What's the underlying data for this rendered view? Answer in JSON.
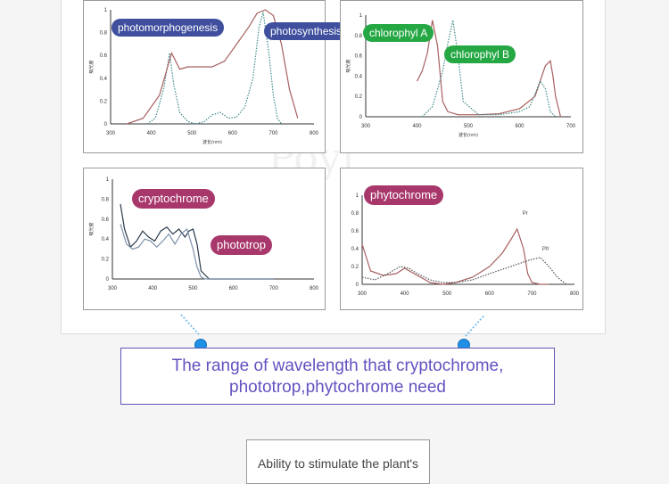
{
  "chart_data": [
    {
      "type": "line",
      "x_ticks": [
        "300",
        "400",
        "500",
        "600",
        "700",
        "800"
      ],
      "y_ticks": [
        "0",
        "0.2",
        "0.4",
        "0.6",
        "0.8",
        "1"
      ],
      "ylabel": "吸光度",
      "xlabel": "波长(nm)",
      "xlim": [
        300,
        800
      ],
      "ylim": [
        0,
        1
      ],
      "series": [
        {
          "name": "photomorphogenesis",
          "color": "#3f8a8a",
          "style": "dotted",
          "x": [
            390,
            410,
            430,
            445,
            455,
            470,
            490,
            510,
            530,
            550,
            570,
            590,
            610,
            630,
            650,
            665,
            675,
            690,
            700,
            710,
            720
          ],
          "y": [
            0,
            0.05,
            0.3,
            0.62,
            0.35,
            0.1,
            0.02,
            0,
            0.02,
            0.08,
            0.1,
            0.05,
            0.06,
            0.15,
            0.4,
            0.85,
            0.98,
            0.6,
            0.25,
            0.05,
            0
          ]
        },
        {
          "name": "photosynthesis",
          "color": "#a86060",
          "style": "solid",
          "x": [
            340,
            380,
            420,
            450,
            470,
            490,
            520,
            550,
            580,
            610,
            640,
            660,
            680,
            700,
            720,
            740,
            760
          ],
          "y": [
            0,
            0.05,
            0.25,
            0.62,
            0.48,
            0.5,
            0.5,
            0.5,
            0.55,
            0.7,
            0.85,
            0.97,
            1.0,
            0.95,
            0.7,
            0.3,
            0.05
          ]
        }
      ]
    },
    {
      "type": "line",
      "x_ticks": [
        "300",
        "400",
        "500",
        "600",
        "700"
      ],
      "y_ticks": [
        "0",
        "0.2",
        "0.4",
        "0.6",
        "0.8",
        "1"
      ],
      "ylabel": "吸光度",
      "xlabel": "波长(nm)",
      "xlim": [
        300,
        700
      ],
      "ylim": [
        0,
        1
      ],
      "series": [
        {
          "name": "chlorophyl A",
          "color": "#a86060",
          "style": "solid",
          "x": [
            400,
            410,
            420,
            430,
            440,
            450,
            460,
            480,
            520,
            560,
            600,
            630,
            650,
            660,
            665,
            670,
            680
          ],
          "y": [
            0.35,
            0.45,
            0.62,
            0.95,
            0.7,
            0.15,
            0.05,
            0.02,
            0.02,
            0.03,
            0.08,
            0.2,
            0.5,
            0.55,
            0.4,
            0.2,
            0
          ]
        },
        {
          "name": "chlorophyl B",
          "color": "#3f8a8a",
          "style": "dotted",
          "x": [
            410,
            430,
            450,
            460,
            470,
            480,
            490,
            520,
            560,
            600,
            620,
            640,
            650,
            660,
            670
          ],
          "y": [
            0,
            0.1,
            0.45,
            0.72,
            0.95,
            0.6,
            0.15,
            0.02,
            0.02,
            0.05,
            0.1,
            0.35,
            0.28,
            0.05,
            0
          ]
        }
      ]
    },
    {
      "type": "line",
      "x_ticks": [
        "300",
        "400",
        "500",
        "600",
        "700",
        "800"
      ],
      "y_ticks": [
        "0",
        "0.2",
        "0.4",
        "0.6",
        "0.8",
        "1"
      ],
      "ylabel": "吸光度",
      "xlabel": "",
      "xlim": [
        300,
        800
      ],
      "ylim": [
        0,
        1
      ],
      "series": [
        {
          "name": "cryptochrome",
          "color": "#2a3a4a",
          "style": "solid",
          "x": [
            320,
            330,
            345,
            360,
            375,
            390,
            405,
            420,
            435,
            450,
            465,
            480,
            490,
            500,
            510,
            520,
            540,
            600,
            700
          ],
          "y": [
            0.75,
            0.5,
            0.32,
            0.38,
            0.48,
            0.42,
            0.38,
            0.48,
            0.52,
            0.45,
            0.5,
            0.42,
            0.48,
            0.5,
            0.35,
            0.08,
            0,
            0,
            0
          ]
        },
        {
          "name": "phototrop",
          "color": "#7b8fa8",
          "style": "solid",
          "x": [
            320,
            335,
            350,
            365,
            380,
            395,
            410,
            425,
            440,
            455,
            470,
            485,
            500,
            510,
            520,
            530,
            550,
            600,
            700
          ],
          "y": [
            0.55,
            0.35,
            0.3,
            0.32,
            0.4,
            0.38,
            0.32,
            0.38,
            0.45,
            0.35,
            0.45,
            0.5,
            0.3,
            0.12,
            0.02,
            0,
            0,
            0,
            0
          ]
        }
      ]
    },
    {
      "type": "line",
      "x_ticks": [
        "300",
        "400",
        "500",
        "600",
        "700",
        "800"
      ],
      "y_ticks": [
        "0",
        "0.2",
        "0.4",
        "0.6",
        "0.8",
        "1"
      ],
      "ylabel": "",
      "xlabel": "",
      "xlim": [
        300,
        800
      ],
      "ylim": [
        0,
        1
      ],
      "series": [
        {
          "name": "Pr",
          "color": "#a86060",
          "style": "solid",
          "x": [
            300,
            320,
            350,
            380,
            400,
            430,
            460,
            490,
            520,
            560,
            600,
            630,
            650,
            665,
            680,
            690,
            700,
            720,
            740
          ],
          "y": [
            0.45,
            0.15,
            0.1,
            0.12,
            0.18,
            0.1,
            0.02,
            0,
            0.02,
            0.08,
            0.2,
            0.35,
            0.5,
            0.62,
            0.4,
            0.12,
            0.02,
            0,
            0
          ]
        },
        {
          "name": "Pfr",
          "color": "#555555",
          "style": "dotted",
          "x": [
            300,
            330,
            360,
            390,
            410,
            430,
            460,
            490,
            520,
            560,
            600,
            650,
            680,
            700,
            720,
            740,
            760,
            780
          ],
          "y": [
            0.08,
            0.05,
            0.12,
            0.2,
            0.18,
            0.12,
            0.05,
            0.02,
            0.02,
            0.05,
            0.12,
            0.2,
            0.25,
            0.28,
            0.3,
            0.2,
            0.08,
            0
          ]
        }
      ]
    }
  ],
  "labels": {
    "photomorphogenesis": "photomorphogenesis",
    "photosynthesis": "photosynthesis",
    "chlorophyl_a": "chlorophyl A",
    "chlorophyl_b": "chlorophyl B",
    "cryptochrome": "cryptochrome",
    "phototrop": "phototrop",
    "phytochrome": "phytochrome",
    "pr": "Pr",
    "pfr": "Pfr"
  },
  "caption": {
    "line1": "The range of wavelength that cryptochrome,",
    "line2": "phototrop,phytochrome need"
  },
  "bottom_box_text": "Ability to stimulate the plant's",
  "colors": {
    "pill_navy": "#3f4f9e",
    "pill_green": "#25a844",
    "pill_magenta": "#a8386c",
    "caption_text": "#6452c0",
    "dot_blue": "#1e90e6"
  }
}
